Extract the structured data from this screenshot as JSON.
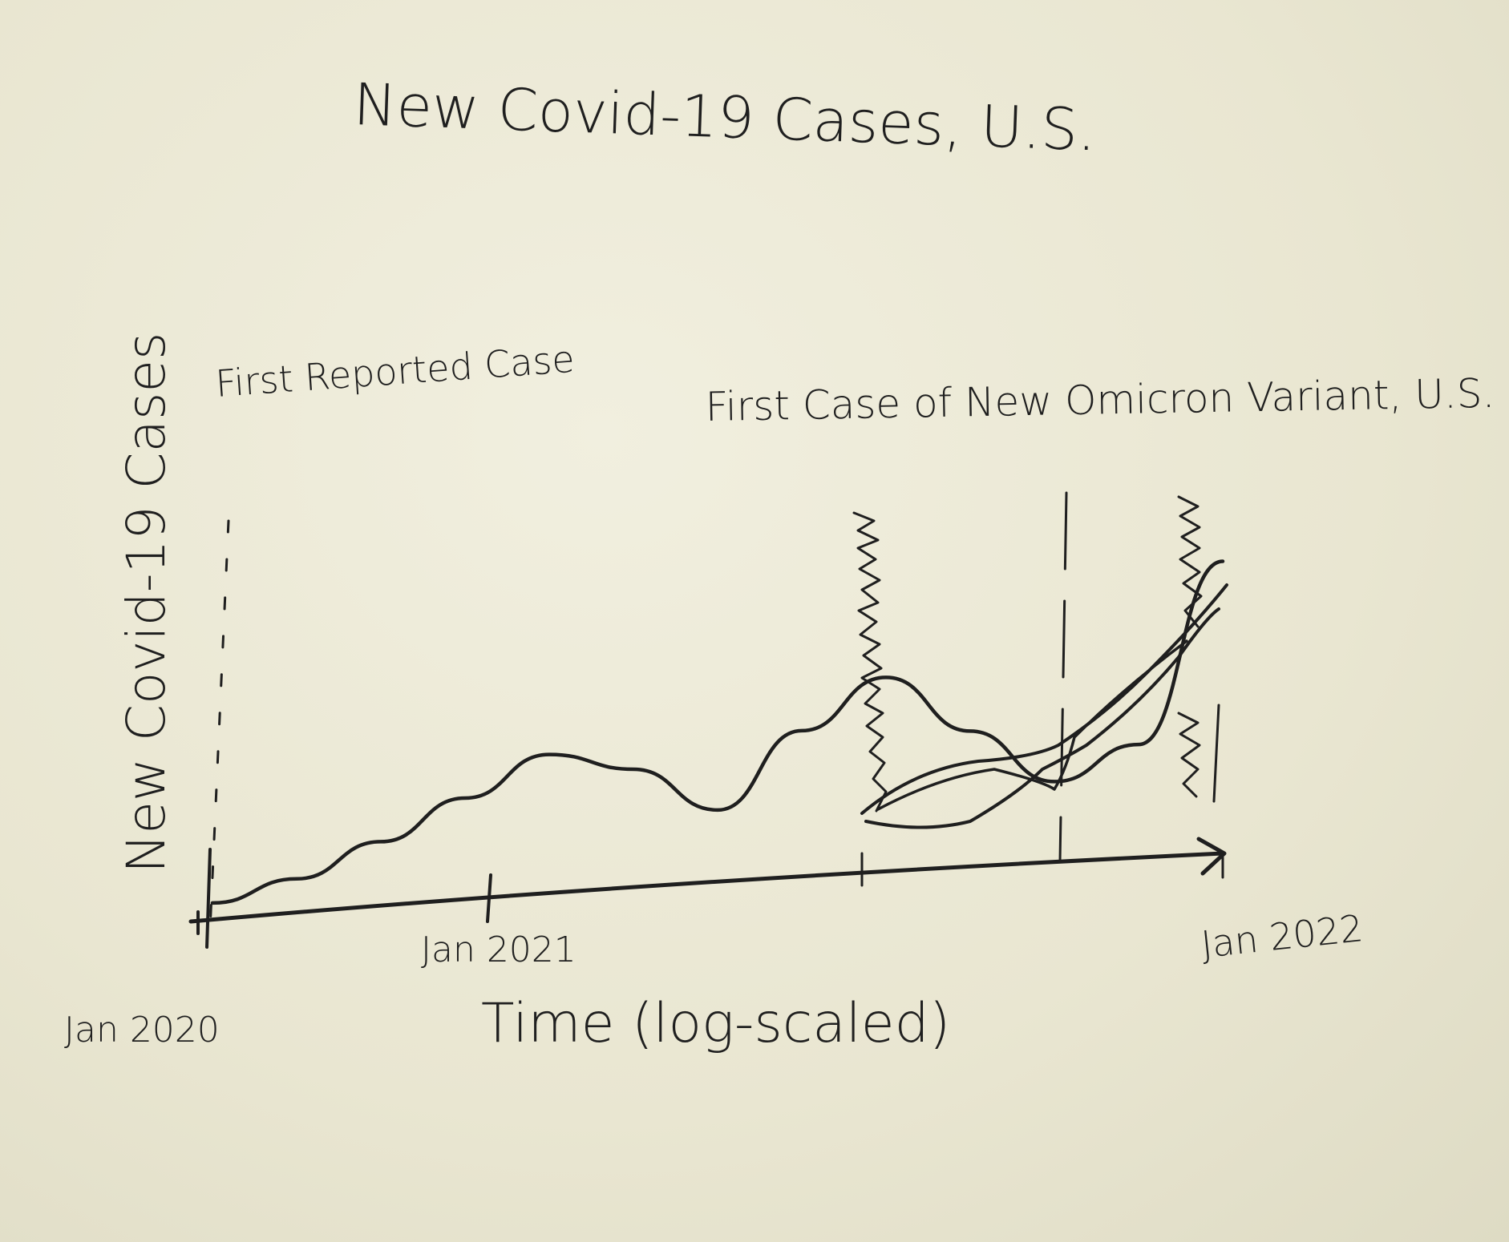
{
  "chart_data": {
    "type": "line",
    "title": "New Covid-19 Cases, U.S.",
    "xlabel": "Time (log-scaled)",
    "ylabel": "New Covid-19 Cases",
    "x_ticks": [
      "Jan 2020",
      "Jan 2021",
      "Jan 2022"
    ],
    "x_scale": "log",
    "grid": false,
    "legend": "none",
    "series": [
      {
        "x": [
          "2020-01",
          "2020-03",
          "2020-05",
          "2020-07",
          "2020-09",
          "2020-11",
          "2021-01",
          "2021-03",
          "2021-05",
          "2021-07",
          "2021-09",
          "2021-11",
          "2022-01"
        ],
        "values": [
          0.02,
          0.08,
          0.18,
          0.3,
          0.42,
          0.36,
          0.22,
          0.45,
          0.6,
          0.42,
          0.25,
          0.35,
          0.9
        ]
      }
    ],
    "annotations": [
      {
        "label": "First Reported Case",
        "at": "Jan 2020",
        "style": "dashed"
      },
      {
        "label": "First Case of New Omicron Variant, U.S.",
        "style": "dashed"
      }
    ]
  },
  "ink_color": "#1f1f1f"
}
